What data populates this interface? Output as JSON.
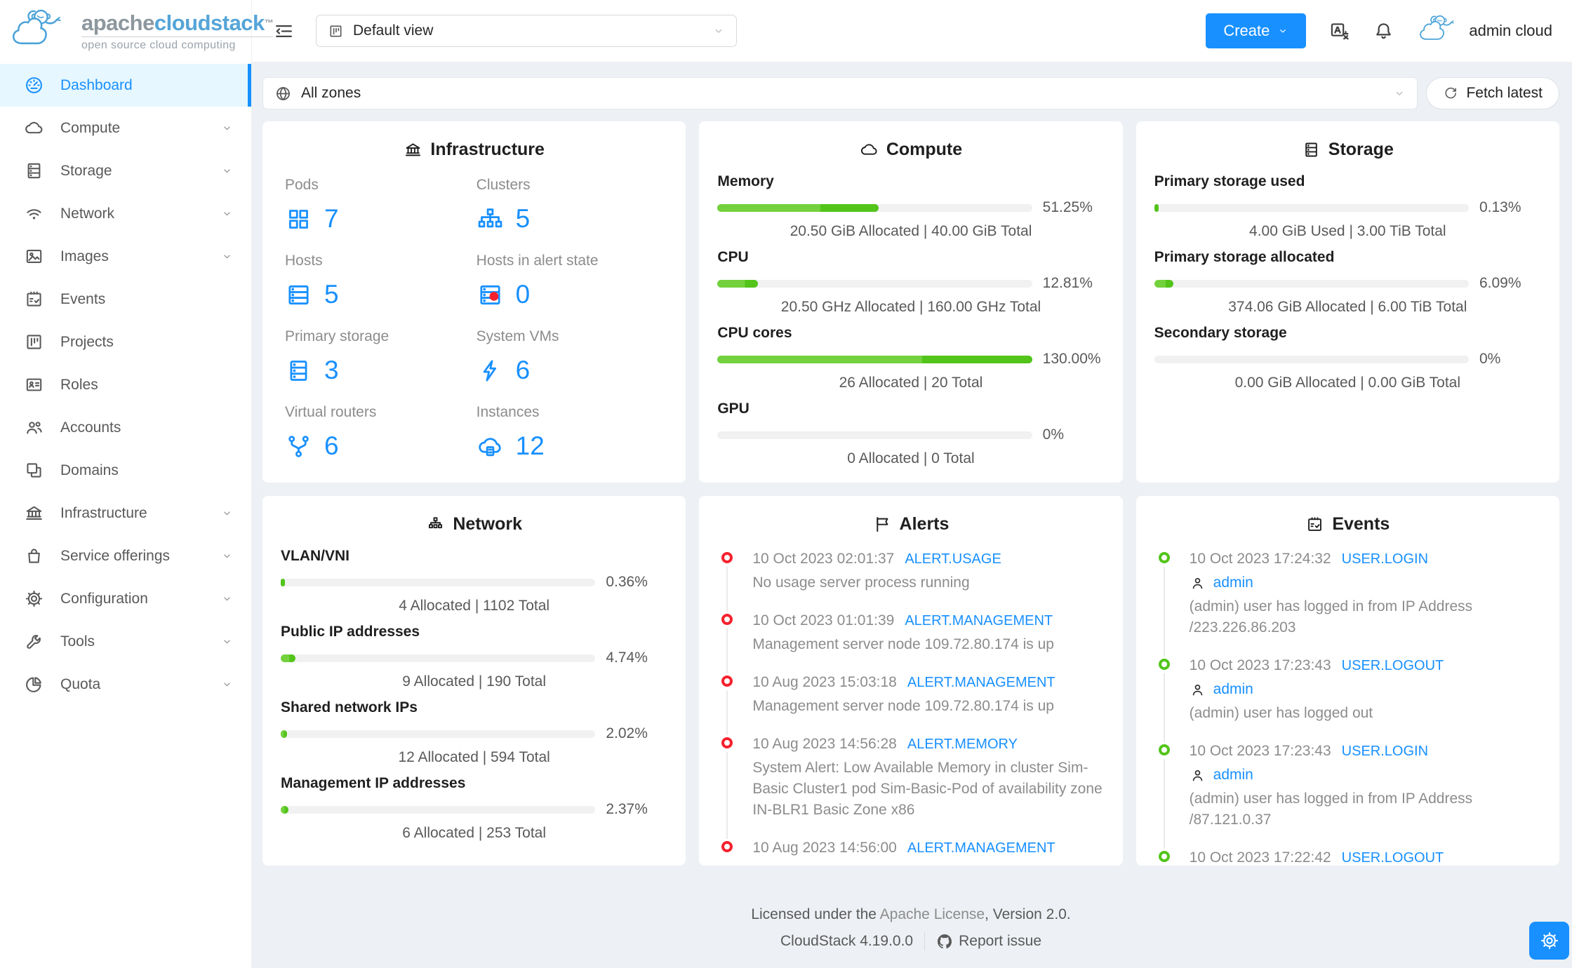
{
  "brand": {
    "title_primary": "apache",
    "title_secondary": "cloudstack",
    "trademark": "™",
    "tagline": "open source cloud computing"
  },
  "colors": {
    "primary": "#1890ff",
    "green_light": "#73d13d",
    "green_dark": "#52c41a",
    "alert_red": "#f5222d",
    "active_bg": "#e6f7ff"
  },
  "sidebar": {
    "items": [
      {
        "label": "Dashboard",
        "icon": "dashboard-icon",
        "active": true,
        "expandable": false
      },
      {
        "label": "Compute",
        "icon": "cloud-icon",
        "expandable": true
      },
      {
        "label": "Storage",
        "icon": "database-icon",
        "expandable": true
      },
      {
        "label": "Network",
        "icon": "wifi-icon",
        "expandable": true
      },
      {
        "label": "Images",
        "icon": "picture-icon",
        "expandable": true
      },
      {
        "label": "Events",
        "icon": "calendar-check-icon",
        "expandable": false
      },
      {
        "label": "Projects",
        "icon": "project-icon",
        "expandable": false
      },
      {
        "label": "Roles",
        "icon": "idcard-icon",
        "expandable": false
      },
      {
        "label": "Accounts",
        "icon": "team-icon",
        "expandable": false
      },
      {
        "label": "Domains",
        "icon": "domains-icon",
        "expandable": false
      },
      {
        "label": "Infrastructure",
        "icon": "bank-icon",
        "expandable": true
      },
      {
        "label": "Service offerings",
        "icon": "shopping-icon",
        "expandable": true
      },
      {
        "label": "Configuration",
        "icon": "gear-icon",
        "expandable": true
      },
      {
        "label": "Tools",
        "icon": "tool-icon",
        "expandable": true
      },
      {
        "label": "Quota",
        "icon": "pie-icon",
        "expandable": true
      }
    ]
  },
  "header": {
    "view_select": {
      "value": "Default view",
      "icon": "project-icon"
    },
    "create_label": "Create",
    "user_name": "admin cloud"
  },
  "zone_bar": {
    "selected": "All zones",
    "fetch_label": "Fetch latest"
  },
  "cards": {
    "infrastructure": {
      "title": "Infrastructure",
      "icon": "bank-icon",
      "stats": [
        {
          "label": "Pods",
          "value": "7",
          "icon": "appstore-icon"
        },
        {
          "label": "Clusters",
          "value": "5",
          "icon": "cluster-icon"
        },
        {
          "label": "Hosts",
          "value": "5",
          "icon": "host-icon"
        },
        {
          "label": "Hosts in alert state",
          "value": "0",
          "icon": "host-alert-icon"
        },
        {
          "label": "Primary storage",
          "value": "3",
          "icon": "database-icon"
        },
        {
          "label": "System VMs",
          "value": "6",
          "icon": "thunderbolt-icon"
        },
        {
          "label": "Virtual routers",
          "value": "6",
          "icon": "fork-icon"
        },
        {
          "label": "Instances",
          "value": "12",
          "icon": "cloud-server-icon"
        }
      ]
    },
    "compute": {
      "title": "Compute",
      "icon": "cloud-icon",
      "rows": [
        {
          "label": "Memory",
          "percent": "51.25%",
          "fill": 51.25,
          "split": 0.64,
          "detail": "20.50 GiB Allocated | 40.00 GiB Total"
        },
        {
          "label": "CPU",
          "percent": "12.81%",
          "fill": 12.81,
          "split": 0.68,
          "detail": "20.50 GHz Allocated | 160.00 GHz Total"
        },
        {
          "label": "CPU cores",
          "percent": "130.00%",
          "fill": 100,
          "split": 0.65,
          "detail": "26 Allocated | 20 Total"
        },
        {
          "label": "GPU",
          "percent": "0%",
          "fill": 0,
          "split": 0,
          "detail": "0 Allocated | 0 Total"
        }
      ]
    },
    "storage": {
      "title": "Storage",
      "icon": "database-icon",
      "rows": [
        {
          "label": "Primary storage used",
          "percent": "0.13%",
          "fill": 0.13,
          "split": 0,
          "detail": "4.00 GiB Used | 3.00 TiB Total"
        },
        {
          "label": "Primary storage allocated",
          "percent": "6.09%",
          "fill": 6.09,
          "split": 0.6,
          "detail": "374.06 GiB Allocated | 6.00 TiB Total"
        },
        {
          "label": "Secondary storage",
          "percent": "0%",
          "fill": 0,
          "split": 0,
          "detail": "0.00 GiB Allocated | 0.00 GiB Total"
        }
      ]
    },
    "network": {
      "title": "Network",
      "icon": "apartment-icon",
      "rows": [
        {
          "label": "VLAN/VNI",
          "percent": "0.36%",
          "fill": 0.36,
          "split": 0,
          "detail": "4 Allocated | 1102 Total"
        },
        {
          "label": "Public IP addresses",
          "percent": "4.74%",
          "fill": 4.74,
          "split": 0.6,
          "detail": "9 Allocated | 190 Total"
        },
        {
          "label": "Shared network IPs",
          "percent": "2.02%",
          "fill": 2.02,
          "split": 0.5,
          "detail": "12 Allocated | 594 Total"
        },
        {
          "label": "Management IP addresses",
          "percent": "2.37%",
          "fill": 2.37,
          "split": 0.5,
          "detail": "6 Allocated | 253 Total"
        }
      ]
    },
    "alerts": {
      "title": "Alerts",
      "icon": "flag-icon",
      "items": [
        {
          "time": "10 Oct 2023 02:01:37",
          "type": "ALERT.USAGE",
          "text": "No usage server process running"
        },
        {
          "time": "10 Oct 2023 01:01:39",
          "type": "ALERT.MANAGEMENT",
          "text": "Management server node 109.72.80.174 is up"
        },
        {
          "time": "10 Aug 2023 15:03:18",
          "type": "ALERT.MANAGEMENT",
          "text": "Management server node 109.72.80.174 is up"
        },
        {
          "time": "10 Aug 2023 14:56:28",
          "type": "ALERT.MEMORY",
          "text": "System Alert: Low Available Memory in cluster Sim-Basic Cluster1 pod Sim-Basic-Pod of availability zone IN-BLR1 Basic Zone x86"
        },
        {
          "time": "10 Aug 2023 14:56:00",
          "type": "ALERT.MANAGEMENT",
          "text": ""
        }
      ]
    },
    "events": {
      "title": "Events",
      "icon": "calendar-check-icon",
      "items": [
        {
          "time": "10 Oct 2023 17:24:32",
          "type": "USER.LOGIN",
          "user": "admin",
          "text": "(admin) user has logged in from IP Address /223.226.86.203"
        },
        {
          "time": "10 Oct 2023 17:23:43",
          "type": "USER.LOGOUT",
          "user": "admin",
          "text": "(admin) user has logged out"
        },
        {
          "time": "10 Oct 2023 17:23:43",
          "type": "USER.LOGIN",
          "user": "admin",
          "text": "(admin) user has logged in from IP Address /87.121.0.37"
        },
        {
          "time": "10 Oct 2023 17:22:42",
          "type": "USER.LOGOUT",
          "user": "",
          "text": ""
        }
      ]
    }
  },
  "footer": {
    "license_prefix": "Licensed under the ",
    "license_link": "Apache License",
    "license_suffix": ", Version 2.0.",
    "version": "CloudStack 4.19.0.0",
    "report_label": "Report issue"
  }
}
